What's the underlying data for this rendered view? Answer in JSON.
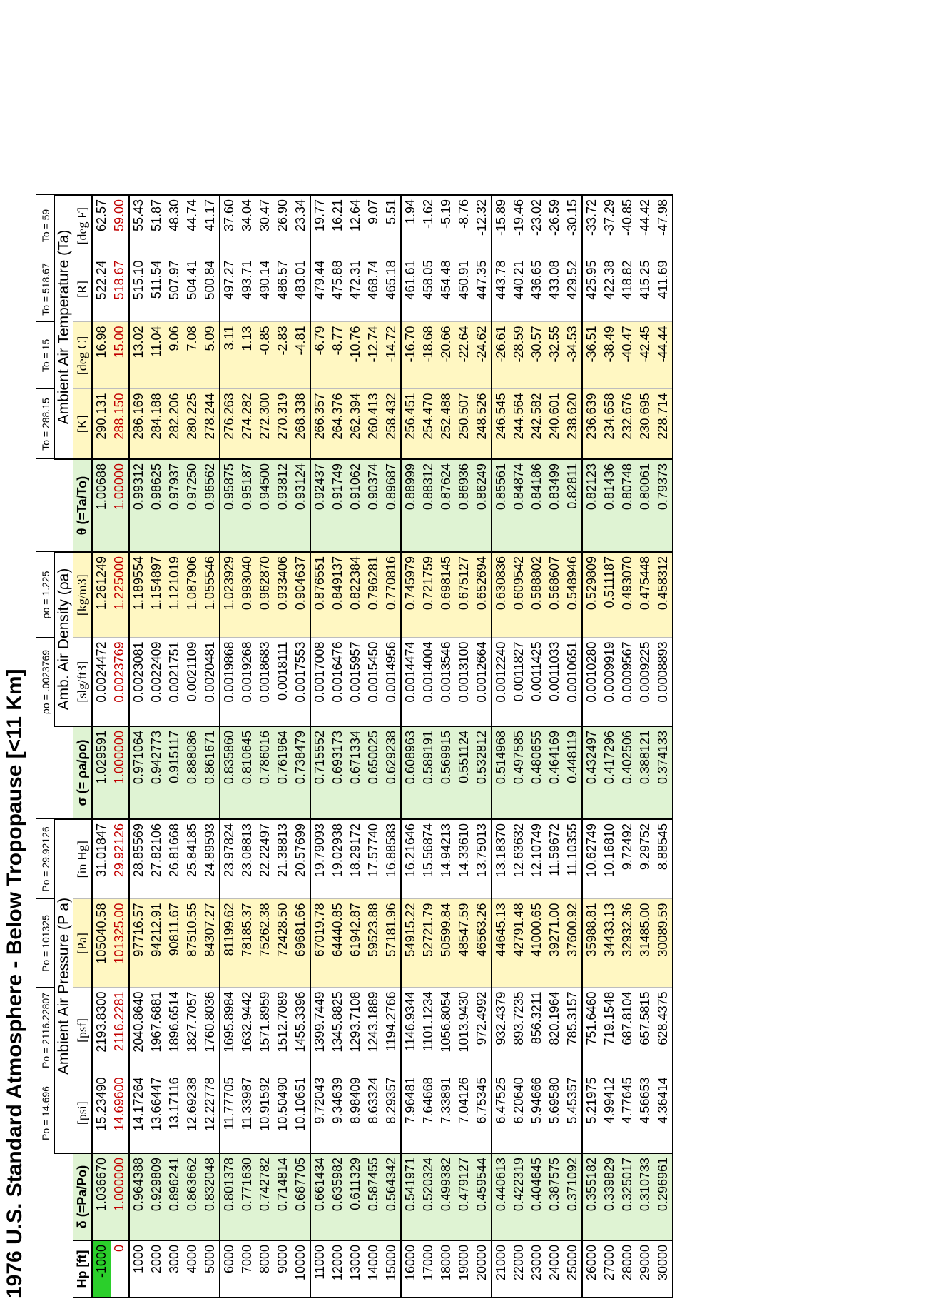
{
  "title": "1976 U.S. Standard Atmosphere - Below Tropopause [<11 Km]",
  "ref_values": {
    "psi": "Po = 14.696",
    "psf": "Po = 2116.22807",
    "pa": "Po = 101325",
    "inhg": "Po = 29.92126",
    "slg": "ρo = .0023769",
    "kgm3": "ρo = 1.225",
    "K": "To = 288.15",
    "C": "To = 15",
    "R": "To = 518.67",
    "F": "To = 59"
  },
  "group_headers": {
    "pressure": "Ambient Air Pressure (P a)",
    "density": "Amb. Air Density (ρa)",
    "temperature": "Ambient Air Temperature (Ta)"
  },
  "columns": {
    "hp": "Hp [ft]",
    "delta": "δ (=Pa/Po)",
    "psi": "[psi]",
    "psf": "[psf]",
    "pa": "[Pa]",
    "inhg": "[in Hg]",
    "sigma": "σ (= ρa/ρo)",
    "slg": "[slg/ft3]",
    "kgm3": "[kg/m3]",
    "theta": "θ (=Ta/To)",
    "K": "[K]",
    "C": "[deg C]",
    "R": "[R]",
    "F": "[deg F]"
  },
  "rows": [
    [
      "-1000",
      "1.036670",
      "15.23490",
      "2193.8300",
      "105040.58",
      "31.01847",
      "1.029591",
      "0.0024472",
      "1.261249",
      "1.00688",
      "290.131",
      "16.98",
      "522.24",
      "62.57"
    ],
    [
      "0",
      "1.000000",
      "14.69600",
      "2116.2281",
      "101325.00",
      "29.92126",
      "1.000000",
      "0.0023769",
      "1.225000",
      "1.00000",
      "288.150",
      "15.00",
      "518.67",
      "59.00"
    ],
    [
      "1000",
      "0.964388",
      "14.17264",
      "2040.8640",
      "97716.57",
      "28.85569",
      "0.971064",
      "0.0023081",
      "1.189554",
      "0.99312",
      "286.169",
      "13.02",
      "515.10",
      "55.43"
    ],
    [
      "2000",
      "0.929809",
      "13.66447",
      "1967.6881",
      "94212.91",
      "27.82106",
      "0.942773",
      "0.0022409",
      "1.154897",
      "0.98625",
      "284.188",
      "11.04",
      "511.54",
      "51.87"
    ],
    [
      "3000",
      "0.896241",
      "13.17116",
      "1896.6514",
      "90811.67",
      "26.81668",
      "0.915117",
      "0.0021751",
      "1.121019",
      "0.97937",
      "282.206",
      "9.06",
      "507.97",
      "48.30"
    ],
    [
      "4000",
      "0.863662",
      "12.69238",
      "1827.7057",
      "87510.55",
      "25.84185",
      "0.888086",
      "0.0021109",
      "1.087906",
      "0.97250",
      "280.225",
      "7.08",
      "504.41",
      "44.74"
    ],
    [
      "5000",
      "0.832048",
      "12.22778",
      "1760.8036",
      "84307.27",
      "24.89593",
      "0.861671",
      "0.0020481",
      "1.055546",
      "0.96562",
      "278.244",
      "5.09",
      "500.84",
      "41.17"
    ],
    [
      "6000",
      "0.801378",
      "11.77705",
      "1695.8984",
      "81199.62",
      "23.97824",
      "0.835860",
      "0.0019868",
      "1.023929",
      "0.95875",
      "276.263",
      "3.11",
      "497.27",
      "37.60"
    ],
    [
      "7000",
      "0.771630",
      "11.33987",
      "1632.9442",
      "78185.37",
      "23.08813",
      "0.810645",
      "0.0019268",
      "0.993040",
      "0.95187",
      "274.282",
      "1.13",
      "493.71",
      "34.04"
    ],
    [
      "8000",
      "0.742782",
      "10.91592",
      "1571.8959",
      "75262.38",
      "22.22497",
      "0.786016",
      "0.0018683",
      "0.962870",
      "0.94500",
      "272.300",
      "-0.85",
      "490.14",
      "30.47"
    ],
    [
      "9000",
      "0.714814",
      "10.50490",
      "1512.7089",
      "72428.50",
      "21.38813",
      "0.761964",
      "0.0018111",
      "0.933406",
      "0.93812",
      "270.319",
      "-2.83",
      "486.57",
      "26.90"
    ],
    [
      "10000",
      "0.687705",
      "10.10651",
      "1455.3396",
      "69681.66",
      "20.57699",
      "0.738479",
      "0.0017553",
      "0.904637",
      "0.93124",
      "268.338",
      "-4.81",
      "483.01",
      "23.34"
    ],
    [
      "11000",
      "0.661434",
      "9.72043",
      "1399.7449",
      "67019.78",
      "19.79093",
      "0.715552",
      "0.0017008",
      "0.876551",
      "0.92437",
      "266.357",
      "-6.79",
      "479.44",
      "19.77"
    ],
    [
      "12000",
      "0.635982",
      "9.34639",
      "1345.8825",
      "64440.85",
      "19.02938",
      "0.693173",
      "0.0016476",
      "0.849137",
      "0.91749",
      "264.376",
      "-8.77",
      "475.88",
      "16.21"
    ],
    [
      "13000",
      "0.611329",
      "8.98409",
      "1293.7108",
      "61942.87",
      "18.29172",
      "0.671334",
      "0.0015957",
      "0.822384",
      "0.91062",
      "262.394",
      "-10.76",
      "472.31",
      "12.64"
    ],
    [
      "14000",
      "0.587455",
      "8.63324",
      "1243.1889",
      "59523.88",
      "17.57740",
      "0.650025",
      "0.0015450",
      "0.796281",
      "0.90374",
      "260.413",
      "-12.74",
      "468.74",
      "9.07"
    ],
    [
      "15000",
      "0.564342",
      "8.29357",
      "1194.2766",
      "57181.96",
      "16.88583",
      "0.629238",
      "0.0014956",
      "0.770816",
      "0.89687",
      "258.432",
      "-14.72",
      "465.18",
      "5.51"
    ],
    [
      "16000",
      "0.541971",
      "7.96481",
      "1146.9344",
      "54915.22",
      "16.21646",
      "0.608963",
      "0.0014474",
      "0.745979",
      "0.88999",
      "256.451",
      "-16.70",
      "461.61",
      "1.94"
    ],
    [
      "17000",
      "0.520324",
      "7.64668",
      "1101.1234",
      "52721.79",
      "15.56874",
      "0.589191",
      "0.0014004",
      "0.721759",
      "0.88312",
      "254.470",
      "-18.68",
      "458.05",
      "-1.62"
    ],
    [
      "18000",
      "0.499382",
      "7.33891",
      "1056.8054",
      "50599.84",
      "14.94213",
      "0.569915",
      "0.0013546",
      "0.698145",
      "0.87624",
      "252.488",
      "-20.66",
      "454.48",
      "-5.19"
    ],
    [
      "19000",
      "0.479127",
      "7.04126",
      "1013.9430",
      "48547.59",
      "14.33610",
      "0.551124",
      "0.0013100",
      "0.675127",
      "0.86936",
      "250.507",
      "-22.64",
      "450.91",
      "-8.76"
    ],
    [
      "20000",
      "0.459544",
      "6.75345",
      "972.4992",
      "46563.26",
      "13.75013",
      "0.532812",
      "0.0012664",
      "0.652694",
      "0.86249",
      "248.526",
      "-24.62",
      "447.35",
      "-12.32"
    ],
    [
      "21000",
      "0.440613",
      "6.47525",
      "932.4379",
      "44645.13",
      "13.18370",
      "0.514968",
      "0.0012240",
      "0.630836",
      "0.85561",
      "246.545",
      "-26.61",
      "443.78",
      "-15.89"
    ],
    [
      "22000",
      "0.422319",
      "6.20640",
      "893.7235",
      "42791.48",
      "12.63632",
      "0.497585",
      "0.0011827",
      "0.609542",
      "0.84874",
      "244.564",
      "-28.59",
      "440.21",
      "-19.46"
    ],
    [
      "23000",
      "0.404645",
      "5.94666",
      "856.3211",
      "41000.65",
      "12.10749",
      "0.480655",
      "0.0011425",
      "0.588802",
      "0.84186",
      "242.582",
      "-30.57",
      "436.65",
      "-23.02"
    ],
    [
      "24000",
      "0.387575",
      "5.69580",
      "820.1964",
      "39271.00",
      "11.59672",
      "0.464169",
      "0.0011033",
      "0.568607",
      "0.83499",
      "240.601",
      "-32.55",
      "433.08",
      "-26.59"
    ],
    [
      "25000",
      "0.371092",
      "5.45357",
      "785.3157",
      "37600.92",
      "11.10355",
      "0.448119",
      "0.0010651",
      "0.548946",
      "0.82811",
      "238.620",
      "-34.53",
      "429.52",
      "-30.15"
    ],
    [
      "26000",
      "0.355182",
      "5.21975",
      "751.6460",
      "35988.81",
      "10.62749",
      "0.432497",
      "0.0010280",
      "0.529809",
      "0.82123",
      "236.639",
      "-36.51",
      "425.95",
      "-33.72"
    ],
    [
      "27000",
      "0.339829",
      "4.99412",
      "719.1548",
      "34433.13",
      "10.16810",
      "0.417296",
      "0.0009919",
      "0.511187",
      "0.81436",
      "234.658",
      "-38.49",
      "422.38",
      "-37.29"
    ],
    [
      "28000",
      "0.325017",
      "4.77645",
      "687.8104",
      "32932.36",
      "9.72492",
      "0.402506",
      "0.0009567",
      "0.493070",
      "0.80748",
      "232.676",
      "-40.47",
      "418.82",
      "-40.85"
    ],
    [
      "29000",
      "0.310733",
      "4.56653",
      "657.5815",
      "31485.00",
      "9.29752",
      "0.388121",
      "0.0009225",
      "0.475448",
      "0.80061",
      "230.695",
      "-42.45",
      "415.25",
      "-44.42"
    ],
    [
      "30000",
      "0.296961",
      "4.36414",
      "628.4375",
      "30089.59",
      "8.88545",
      "0.374133",
      "0.0008893",
      "0.458312",
      "0.79373",
      "228.714",
      "-44.44",
      "411.69",
      "-47.98"
    ]
  ],
  "colors": {
    "green_fill": "#dff3d3",
    "yellow_fill": "#fff7c2",
    "reference_text": "#c00000",
    "highlight_cell": "#2bcf2b"
  }
}
